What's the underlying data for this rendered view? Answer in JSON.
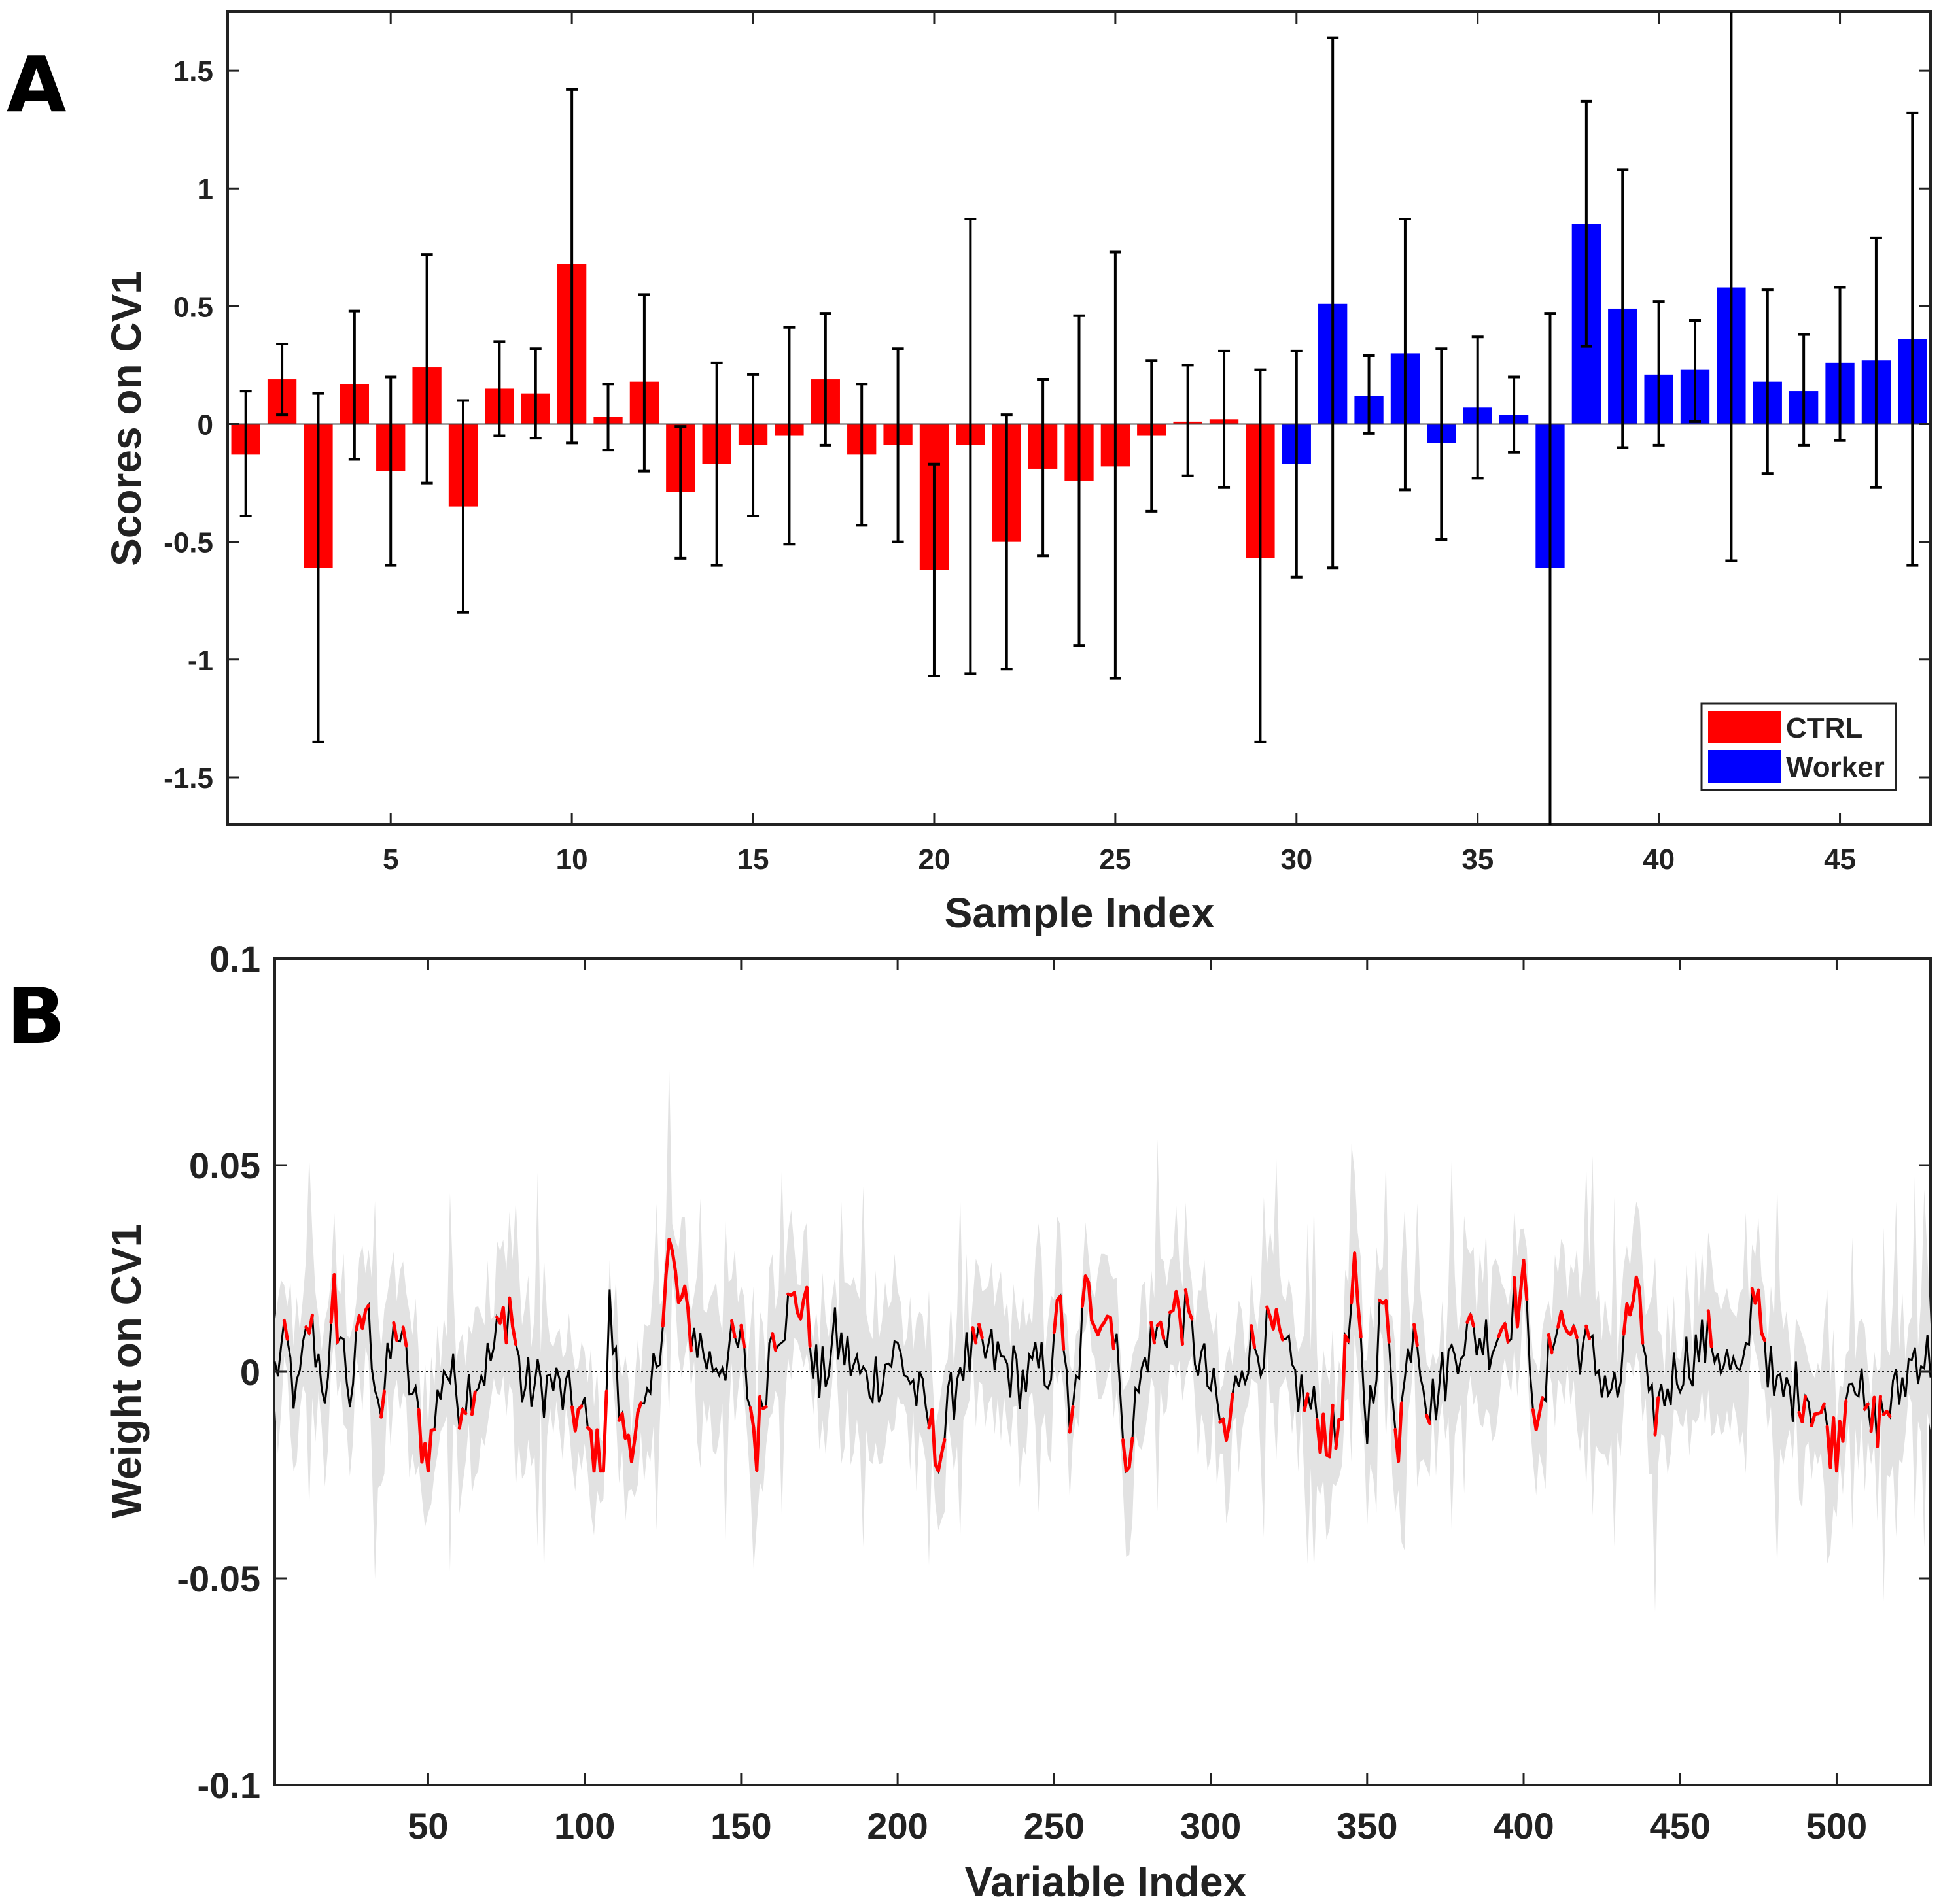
{
  "panel_labels": {
    "a": "A",
    "b": "B"
  },
  "colors": {
    "ctrl": "#ff0000",
    "worker": "#0000ff",
    "band": "#e2e2e2",
    "line": "#000000",
    "highlight": "#ff0000"
  },
  "chart_data": [
    {
      "type": "bar",
      "panel": "A",
      "title": "",
      "xlabel": "Sample Index",
      "ylabel": "Scores on CV1",
      "xlim": [
        0.5,
        47.5
      ],
      "ylim": [
        -1.7,
        1.75
      ],
      "xticks": [
        5,
        10,
        15,
        20,
        25,
        30,
        35,
        40,
        45
      ],
      "yticks": [
        -1.5,
        -1,
        -0.5,
        0,
        0.5,
        1,
        1.5
      ],
      "ytick_labels": [
        "-1.5",
        "-1",
        "-0.5",
        "0",
        "0.5",
        "1",
        "1.5"
      ],
      "legend": {
        "position": "bottom-right",
        "entries": [
          {
            "label": "CTRL",
            "color": "#ff0000"
          },
          {
            "label": "Worker",
            "color": "#0000ff"
          }
        ]
      },
      "series": [
        {
          "name": "CTRL",
          "x": [
            1,
            2,
            3,
            4,
            5,
            6,
            7,
            8,
            9,
            10,
            11,
            12,
            13,
            14,
            15,
            16,
            17,
            18,
            19,
            20,
            21,
            22,
            23,
            24,
            25,
            26,
            27,
            28,
            29
          ],
          "values": [
            -0.13,
            0.19,
            -0.61,
            0.17,
            -0.2,
            0.24,
            -0.35,
            0.15,
            0.13,
            0.68,
            0.03,
            0.18,
            -0.29,
            -0.17,
            -0.09,
            -0.05,
            0.19,
            -0.13,
            -0.09,
            -0.62,
            -0.09,
            -0.5,
            -0.19,
            -0.24,
            -0.18,
            -0.05,
            0.01,
            0.02,
            -0.57
          ],
          "err_low": [
            -0.39,
            0.04,
            -1.35,
            -0.15,
            -0.6,
            -0.25,
            -0.8,
            -0.05,
            -0.06,
            -0.08,
            -0.11,
            -0.2,
            -0.57,
            -0.6,
            -0.39,
            -0.51,
            -0.09,
            -0.43,
            -0.5,
            -1.07,
            -1.06,
            -1.04,
            -0.56,
            -0.94,
            -1.08,
            -0.37,
            -0.22,
            -0.27,
            -1.35
          ],
          "err_high": [
            0.14,
            0.34,
            0.13,
            0.48,
            0.2,
            0.72,
            0.1,
            0.35,
            0.32,
            1.42,
            0.17,
            0.55,
            -0.01,
            0.26,
            0.21,
            0.41,
            0.47,
            0.17,
            0.32,
            -0.17,
            0.87,
            0.04,
            0.19,
            0.46,
            0.73,
            0.27,
            0.25,
            0.31,
            0.23
          ]
        },
        {
          "name": "Worker",
          "x": [
            30,
            31,
            32,
            33,
            34,
            35,
            36,
            37,
            38,
            39,
            40,
            41,
            42,
            43,
            44,
            45,
            46,
            47
          ],
          "values": [
            -0.17,
            0.51,
            0.12,
            0.3,
            -0.08,
            0.07,
            0.04,
            -0.61,
            0.85,
            0.49,
            0.21,
            0.23,
            0.58,
            0.18,
            0.14,
            0.26,
            0.27,
            0.36
          ],
          "err_low": [
            -0.65,
            -0.61,
            -0.04,
            -0.28,
            -0.49,
            -0.23,
            -0.12,
            -1.8,
            0.33,
            -0.1,
            -0.09,
            0.01,
            -0.58,
            -0.21,
            -0.09,
            -0.07,
            -0.27,
            -0.6
          ],
          "err_high": [
            0.31,
            1.64,
            0.29,
            0.87,
            0.32,
            0.37,
            0.2,
            0.47,
            1.37,
            1.08,
            0.52,
            0.44,
            1.8,
            0.57,
            0.38,
            0.58,
            0.79,
            1.32
          ]
        }
      ]
    },
    {
      "type": "line",
      "panel": "B",
      "title": "",
      "xlabel": "Variable Index",
      "ylabel": "Weight on CV1",
      "xlim": [
        1,
        530
      ],
      "ylim": [
        -0.1,
        0.1
      ],
      "xticks": [
        50,
        100,
        150,
        200,
        250,
        300,
        350,
        400,
        450,
        500
      ],
      "yticks": [
        -0.1,
        -0.05,
        0,
        0.05,
        0.1
      ],
      "ytick_labels": [
        "-0.1",
        "-0.05",
        "0",
        "0.05",
        "0.1"
      ],
      "zero_line": {
        "style": "dotted",
        "y": 0
      },
      "series_description": "weights for 530 variables (black) with uncertainty band (gray); significant segments in red",
      "n_points": 530,
      "anchor_points": {
        "x": [
          1,
          3,
          5,
          8,
          12,
          18,
          20,
          25,
          30,
          35,
          40,
          45,
          50,
          55,
          60,
          70,
          76,
          80,
          90,
          100,
          103,
          106,
          108,
          112,
          120,
          125,
          127,
          130,
          140,
          150,
          155,
          160,
          170,
          175,
          180,
          190,
          200,
          210,
          213,
          220,
          230,
          240,
          250,
          252,
          255,
          260,
          270,
          272,
          280,
          290,
          300,
          305,
          310,
          320,
          330,
          340,
          346,
          350,
          355,
          360,
          365,
          370,
          380,
          390,
          400,
          405,
          410,
          420,
          430,
          436,
          440,
          450,
          460,
          470,
          474,
          480,
          490,
          500,
          505,
          510,
          520,
          525,
          530
        ],
        "y": [
          0,
          0.004,
          0.005,
          -0.008,
          0.012,
          -0.006,
          0.018,
          -0.005,
          0.016,
          -0.009,
          0.012,
          -0.006,
          -0.022,
          0.002,
          -0.006,
          0.003,
          0.017,
          -0.004,
          -0.003,
          -0.012,
          -0.02,
          -0.023,
          0.015,
          -0.015,
          -0.012,
          0.015,
          0.031,
          0.017,
          0.002,
          0.006,
          -0.018,
          0.011,
          0.018,
          -0.004,
          0.008,
          -0.003,
          0.005,
          -0.012,
          -0.022,
          0.003,
          0.004,
          -0.002,
          0.003,
          0.022,
          -0.019,
          0.018,
          0.012,
          -0.023,
          0.006,
          0.016,
          -0.004,
          -0.017,
          0.004,
          0.009,
          -0.007,
          -0.017,
          0.021,
          -0.013,
          0.018,
          -0.015,
          0.015,
          -0.009,
          0.009,
          0.008,
          0.02,
          -0.017,
          0.014,
          0.005,
          -0.006,
          0.024,
          -0.012,
          0.002,
          0.008,
          -0.004,
          0.023,
          -0.006,
          -0.004,
          -0.018,
          0.004,
          -0.014,
          -0.005,
          0.005,
          0.003
        ]
      },
      "band_spread": 0.014
    }
  ]
}
